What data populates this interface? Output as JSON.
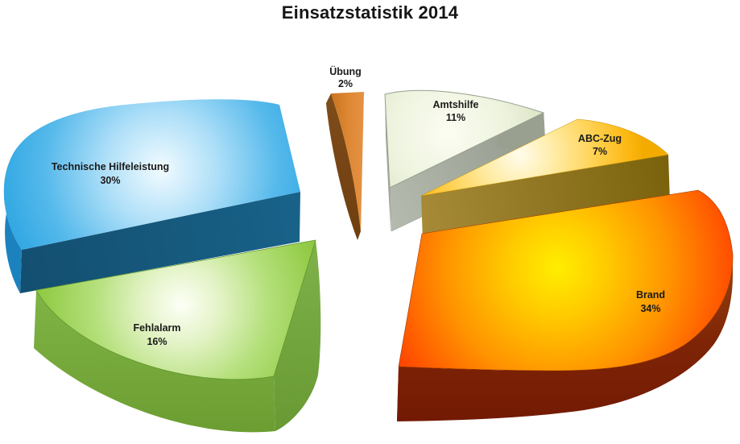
{
  "page": {
    "background": "#FFFFFF"
  },
  "title": "Einsatzstatistik 2014",
  "chart_data": {
    "type": "pie",
    "style": "3d-exploded",
    "title": "Einsatzstatistik 2014",
    "unit": "percent",
    "start_angle": "top",
    "direction": "clockwise",
    "legend": "none",
    "grid": "off",
    "background": "#FFFFFF",
    "label_format": "name + percent",
    "slices": [
      {
        "id": "uebung",
        "label": "Übung",
        "value": 2,
        "pct_label": "2%",
        "color": "#DD8733",
        "side_color": "#7A4718"
      },
      {
        "id": "amtshilfe",
        "label": "Amtshilfe",
        "value": 11,
        "pct_label": "11%",
        "color": "#E8EFD8",
        "side_color": "#9BA295"
      },
      {
        "id": "abc-zug",
        "label": "ABC-Zug",
        "value": 7,
        "pct_label": "7%",
        "color": "#FFC33E",
        "side_color": "#8F7519"
      },
      {
        "id": "brand",
        "label": "Brand",
        "value": 34,
        "pct_label": "34%",
        "color": "#FF7A00",
        "side_color": "#8C2406"
      },
      {
        "id": "fehlalarm",
        "label": "Fehlalarm",
        "value": 16,
        "pct_label": "16%",
        "color": "#8CC63F",
        "side_color": "#6E9E33"
      },
      {
        "id": "technische-hilfeleistung",
        "label": "Technische Hilfeleistung",
        "value": 30,
        "pct_label": "30%",
        "color": "#29A3E3",
        "side_color": "#155C7E"
      }
    ]
  }
}
